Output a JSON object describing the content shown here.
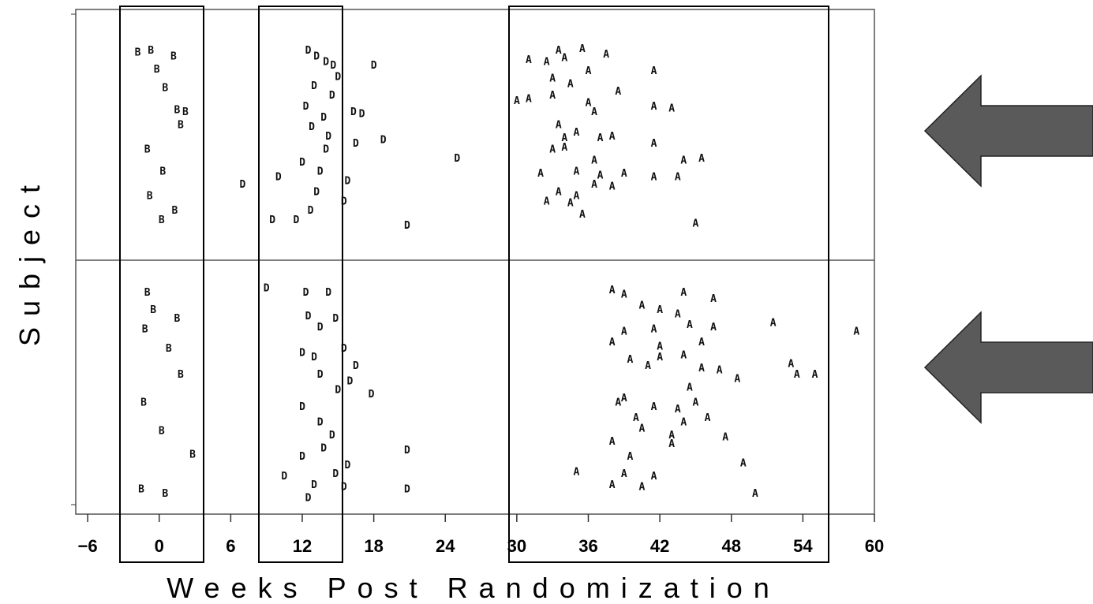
{
  "chart_data": {
    "type": "scatter",
    "title": "",
    "xlabel": "Weeks Post Randomization",
    "ylabel": "Subject",
    "xlim": [
      -7,
      60
    ],
    "xticks": [
      -6,
      0,
      6,
      12,
      18,
      24,
      30,
      36,
      42,
      48,
      54,
      60
    ],
    "grid": false,
    "panels": [
      {
        "name": "",
        "series": [
          {
            "name": "B",
            "x": [
              -1.8,
              -0.7,
              -0.2,
              0.5,
              1.2,
              1.5,
              2.2,
              1.8,
              -1.0,
              0.3,
              -0.8,
              1.3,
              0.2
            ],
            "y": [
              0.03,
              0.02,
              0.12,
              0.22,
              0.05,
              0.34,
              0.35,
              0.42,
              0.55,
              0.67,
              0.8,
              0.88,
              0.93
            ]
          },
          {
            "name": "D",
            "x": [
              12.5,
              13.2,
              14.0,
              14.6,
              15.0,
              13.0,
              14.5,
              12.3,
              13.8,
              16.3,
              17.0,
              12.8,
              16.5,
              18.8,
              14.0,
              25.0,
              12.0,
              13.5,
              10.0,
              15.8,
              7.0,
              13.2,
              15.5,
              12.7,
              11.5,
              9.5,
              20.8,
              18.0,
              14.2
            ],
            "y": [
              0.02,
              0.05,
              0.08,
              0.1,
              0.16,
              0.21,
              0.26,
              0.32,
              0.38,
              0.35,
              0.36,
              0.43,
              0.52,
              0.5,
              0.55,
              0.6,
              0.62,
              0.67,
              0.7,
              0.72,
              0.74,
              0.78,
              0.83,
              0.88,
              0.93,
              0.93,
              0.96,
              0.1,
              0.48
            ]
          },
          {
            "name": "A",
            "x": [
              33.5,
              35.5,
              37.5,
              31.0,
              32.5,
              34.0,
              36.0,
              33.0,
              34.5,
              41.5,
              38.5,
              30.0,
              31.0,
              33.0,
              36.0,
              36.5,
              41.5,
              43.0,
              33.5,
              35.0,
              34.0,
              37.0,
              38.0,
              41.5,
              33.0,
              34.0,
              36.5,
              44.0,
              45.5,
              32.0,
              35.0,
              37.0,
              39.0,
              41.5,
              43.5,
              36.5,
              38.0,
              33.5,
              35.0,
              32.5,
              34.5,
              35.5,
              45.0
            ],
            "y": [
              0.02,
              0.01,
              0.04,
              0.07,
              0.08,
              0.06,
              0.13,
              0.17,
              0.2,
              0.13,
              0.24,
              0.29,
              0.28,
              0.26,
              0.3,
              0.35,
              0.32,
              0.33,
              0.42,
              0.46,
              0.49,
              0.49,
              0.48,
              0.52,
              0.55,
              0.54,
              0.61,
              0.61,
              0.6,
              0.68,
              0.67,
              0.69,
              0.68,
              0.7,
              0.7,
              0.74,
              0.75,
              0.78,
              0.8,
              0.83,
              0.84,
              0.9,
              0.95
            ]
          }
        ]
      },
      {
        "name": "",
        "series": [
          {
            "name": "B",
            "x": [
              -1.0,
              -0.5,
              1.5,
              -1.2,
              0.8,
              1.8,
              -1.3,
              0.2,
              2.8,
              -1.5,
              0.5
            ],
            "y": [
              0.02,
              0.1,
              0.14,
              0.19,
              0.28,
              0.4,
              0.53,
              0.66,
              0.77,
              0.93,
              0.95
            ]
          },
          {
            "name": "D",
            "x": [
              9.0,
              12.3,
              14.2,
              12.5,
              13.5,
              14.8,
              12.0,
              13.0,
              15.5,
              16.0,
              17.8,
              12.0,
              13.5,
              14.5,
              12.0,
              13.8,
              15.8,
              20.8,
              10.5,
              13.0,
              14.8,
              15.5,
              12.5,
              20.8,
              13.5,
              15.0,
              16.5
            ],
            "y": [
              0.0,
              0.02,
              0.02,
              0.13,
              0.18,
              0.14,
              0.3,
              0.32,
              0.28,
              0.43,
              0.49,
              0.55,
              0.62,
              0.68,
              0.78,
              0.74,
              0.82,
              0.75,
              0.87,
              0.91,
              0.86,
              0.92,
              0.97,
              0.93,
              0.4,
              0.47,
              0.36
            ]
          },
          {
            "name": "A",
            "x": [
              38.0,
              39.0,
              44.0,
              46.5,
              40.5,
              42.0,
              43.5,
              39.0,
              41.5,
              44.5,
              46.5,
              51.5,
              38.0,
              42.0,
              45.5,
              39.5,
              41.0,
              42.0,
              44.0,
              45.5,
              47.0,
              53.0,
              53.5,
              55.0,
              48.5,
              44.5,
              38.5,
              39.0,
              41.5,
              43.5,
              45.0,
              40.0,
              44.0,
              46.0,
              40.5,
              43.0,
              38.0,
              43.0,
              47.5,
              39.5,
              49.0,
              35.0,
              39.0,
              41.5,
              38.0,
              40.5,
              50.0,
              58.5
            ],
            "y": [
              0.01,
              0.03,
              0.02,
              0.05,
              0.08,
              0.1,
              0.12,
              0.2,
              0.19,
              0.17,
              0.18,
              0.16,
              0.25,
              0.27,
              0.25,
              0.33,
              0.36,
              0.32,
              0.31,
              0.37,
              0.38,
              0.35,
              0.4,
              0.4,
              0.42,
              0.46,
              0.53,
              0.51,
              0.55,
              0.56,
              0.53,
              0.6,
              0.62,
              0.6,
              0.65,
              0.68,
              0.71,
              0.72,
              0.69,
              0.78,
              0.81,
              0.85,
              0.86,
              0.87,
              0.91,
              0.92,
              0.95,
              0.2
            ]
          }
        ]
      }
    ]
  },
  "colors": {
    "arrow": "#5a5a5a",
    "mark": "#111111",
    "frame": "#000000"
  }
}
